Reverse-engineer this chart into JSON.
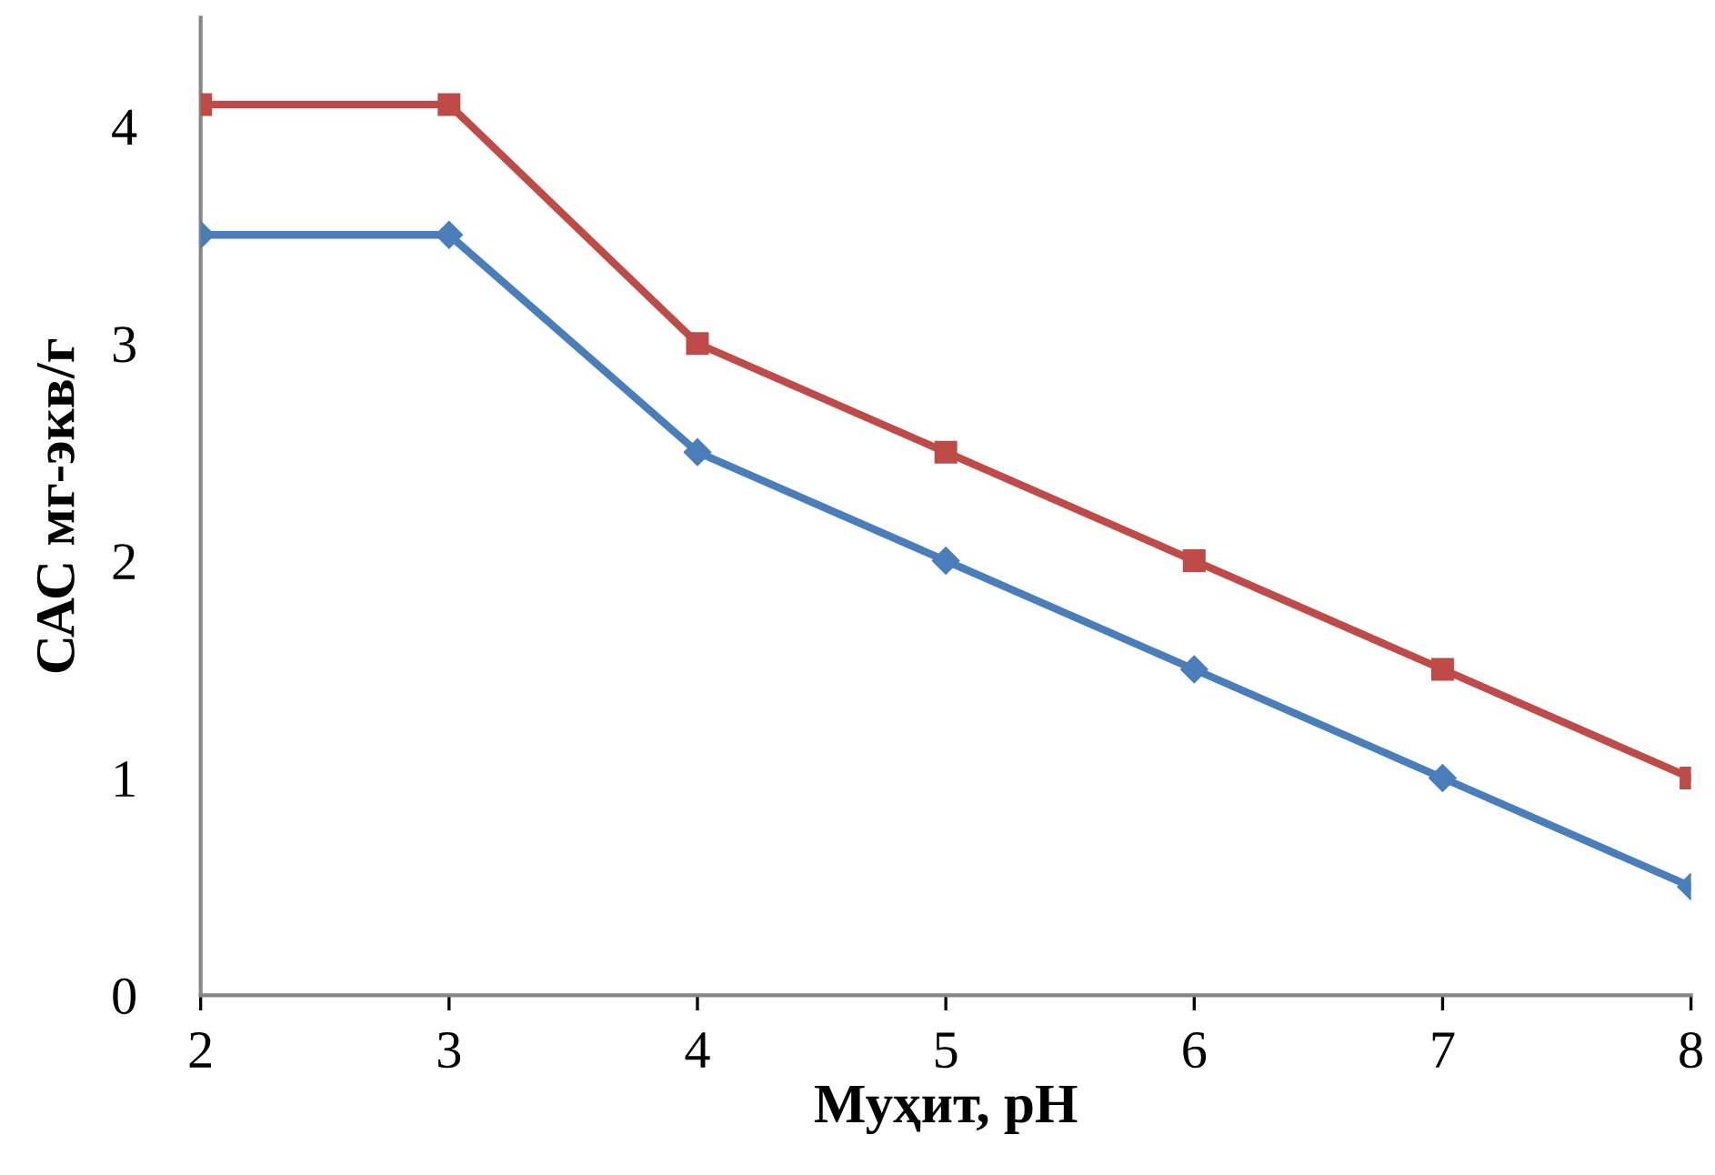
{
  "chart_data": {
    "type": "line",
    "xlabel": "Муҳит, pH",
    "ylabel": "САС мг-экв/г",
    "x": [
      2,
      3,
      4,
      5,
      6,
      7,
      8
    ],
    "series": [
      {
        "color": "#4a7ebb",
        "marker": "diamond",
        "values": [
          3.5,
          3.5,
          2.5,
          2.0,
          1.5,
          1.0,
          0.5
        ]
      },
      {
        "color": "#be4b48",
        "marker": "square",
        "values": [
          4.1,
          4.1,
          3.0,
          2.5,
          2.0,
          1.5,
          1.0
        ]
      }
    ],
    "xlim": [
      2,
      8
    ],
    "xticks": [
      2,
      3,
      4,
      5,
      6,
      7,
      8
    ],
    "ylim": [
      0,
      4.5
    ],
    "yticks": [
      0,
      1,
      2,
      3,
      4
    ],
    "grid": false,
    "legend": false,
    "line_style": "solid"
  }
}
